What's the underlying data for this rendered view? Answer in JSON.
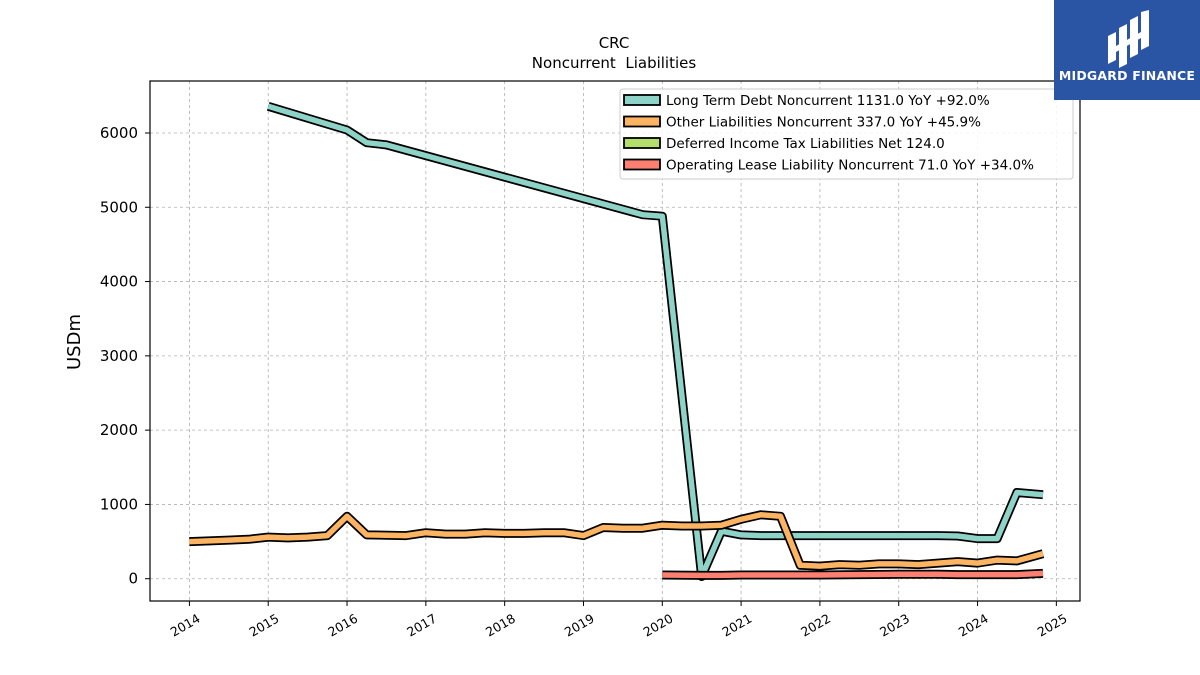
{
  "chart_data": {
    "type": "line",
    "title": "CRC",
    "subtitle": "Noncurrent  Liabilities",
    "ylabel": "USDm",
    "xlabel": "",
    "xlim": [
      2013.5,
      2025.3
    ],
    "ylim": [
      -300,
      6700
    ],
    "x_ticks": [
      "2014",
      "2015",
      "2016",
      "2017",
      "2018",
      "2019",
      "2020",
      "2021",
      "2022",
      "2023",
      "2024",
      "2025"
    ],
    "y_ticks": [
      "0",
      "1000",
      "2000",
      "3000",
      "4000",
      "5000",
      "6000"
    ],
    "grid": true,
    "legend_position": "top-right",
    "series": [
      {
        "name": "Long Term Debt Noncurrent  1131.0 YoY +92.0%",
        "color": "#8dd3c7",
        "points": [
          [
            2015.0,
            6360
          ],
          [
            2016.0,
            6040
          ],
          [
            2016.25,
            5870
          ],
          [
            2016.5,
            5840
          ],
          [
            2019.75,
            4900
          ],
          [
            2020.0,
            4880
          ],
          [
            2020.5,
            30
          ],
          [
            2020.75,
            640
          ],
          [
            2021.0,
            590
          ],
          [
            2021.25,
            580
          ],
          [
            2021.5,
            580
          ],
          [
            2021.75,
            580
          ],
          [
            2022.0,
            580
          ],
          [
            2023.5,
            580
          ],
          [
            2023.75,
            575
          ],
          [
            2024.0,
            540
          ],
          [
            2024.25,
            540
          ],
          [
            2024.5,
            1160
          ],
          [
            2024.83,
            1131
          ]
        ]
      },
      {
        "name": "Other Liabilities Noncurrent  337.0 YoY +45.9%",
        "color": "#fdb462",
        "points": [
          [
            2014.0,
            500
          ],
          [
            2014.5,
            520
          ],
          [
            2014.75,
            530
          ],
          [
            2015.0,
            560
          ],
          [
            2015.25,
            550
          ],
          [
            2015.5,
            560
          ],
          [
            2015.75,
            580
          ],
          [
            2016.0,
            840
          ],
          [
            2016.25,
            590
          ],
          [
            2016.75,
            580
          ],
          [
            2017.0,
            620
          ],
          [
            2017.25,
            600
          ],
          [
            2017.5,
            600
          ],
          [
            2017.75,
            620
          ],
          [
            2018.0,
            610
          ],
          [
            2018.25,
            610
          ],
          [
            2018.5,
            620
          ],
          [
            2018.75,
            620
          ],
          [
            2019.0,
            580
          ],
          [
            2019.25,
            690
          ],
          [
            2019.5,
            680
          ],
          [
            2019.75,
            680
          ],
          [
            2020.0,
            720
          ],
          [
            2020.25,
            710
          ],
          [
            2020.5,
            710
          ],
          [
            2020.75,
            720
          ],
          [
            2021.0,
            800
          ],
          [
            2021.25,
            860
          ],
          [
            2021.5,
            840
          ],
          [
            2021.75,
            180
          ],
          [
            2022.0,
            170
          ],
          [
            2022.25,
            190
          ],
          [
            2022.5,
            180
          ],
          [
            2022.75,
            200
          ],
          [
            2023.0,
            200
          ],
          [
            2023.25,
            190
          ],
          [
            2023.5,
            210
          ],
          [
            2023.75,
            230
          ],
          [
            2024.0,
            210
          ],
          [
            2024.25,
            250
          ],
          [
            2024.5,
            240
          ],
          [
            2024.83,
            337
          ]
        ]
      },
      {
        "name": "Deferred Income Tax Liabilities Net  124.0",
        "color": "#b3de69",
        "points": [
          [
            2023.5,
            124
          ]
        ]
      },
      {
        "name": "Operating Lease Liability Noncurrent  71.0 YoY +34.0%",
        "color": "#fb8072",
        "points": [
          [
            2020.0,
            50
          ],
          [
            2020.5,
            45
          ],
          [
            2020.75,
            45
          ],
          [
            2021.0,
            50
          ],
          [
            2021.5,
            50
          ],
          [
            2022.0,
            50
          ],
          [
            2022.5,
            55
          ],
          [
            2023.0,
            60
          ],
          [
            2023.5,
            60
          ],
          [
            2023.75,
            55
          ],
          [
            2024.0,
            55
          ],
          [
            2024.5,
            55
          ],
          [
            2024.83,
            71
          ]
        ]
      }
    ]
  },
  "logo": {
    "text": "MIDGARD FINANCE",
    "color": "#2a55a5"
  }
}
